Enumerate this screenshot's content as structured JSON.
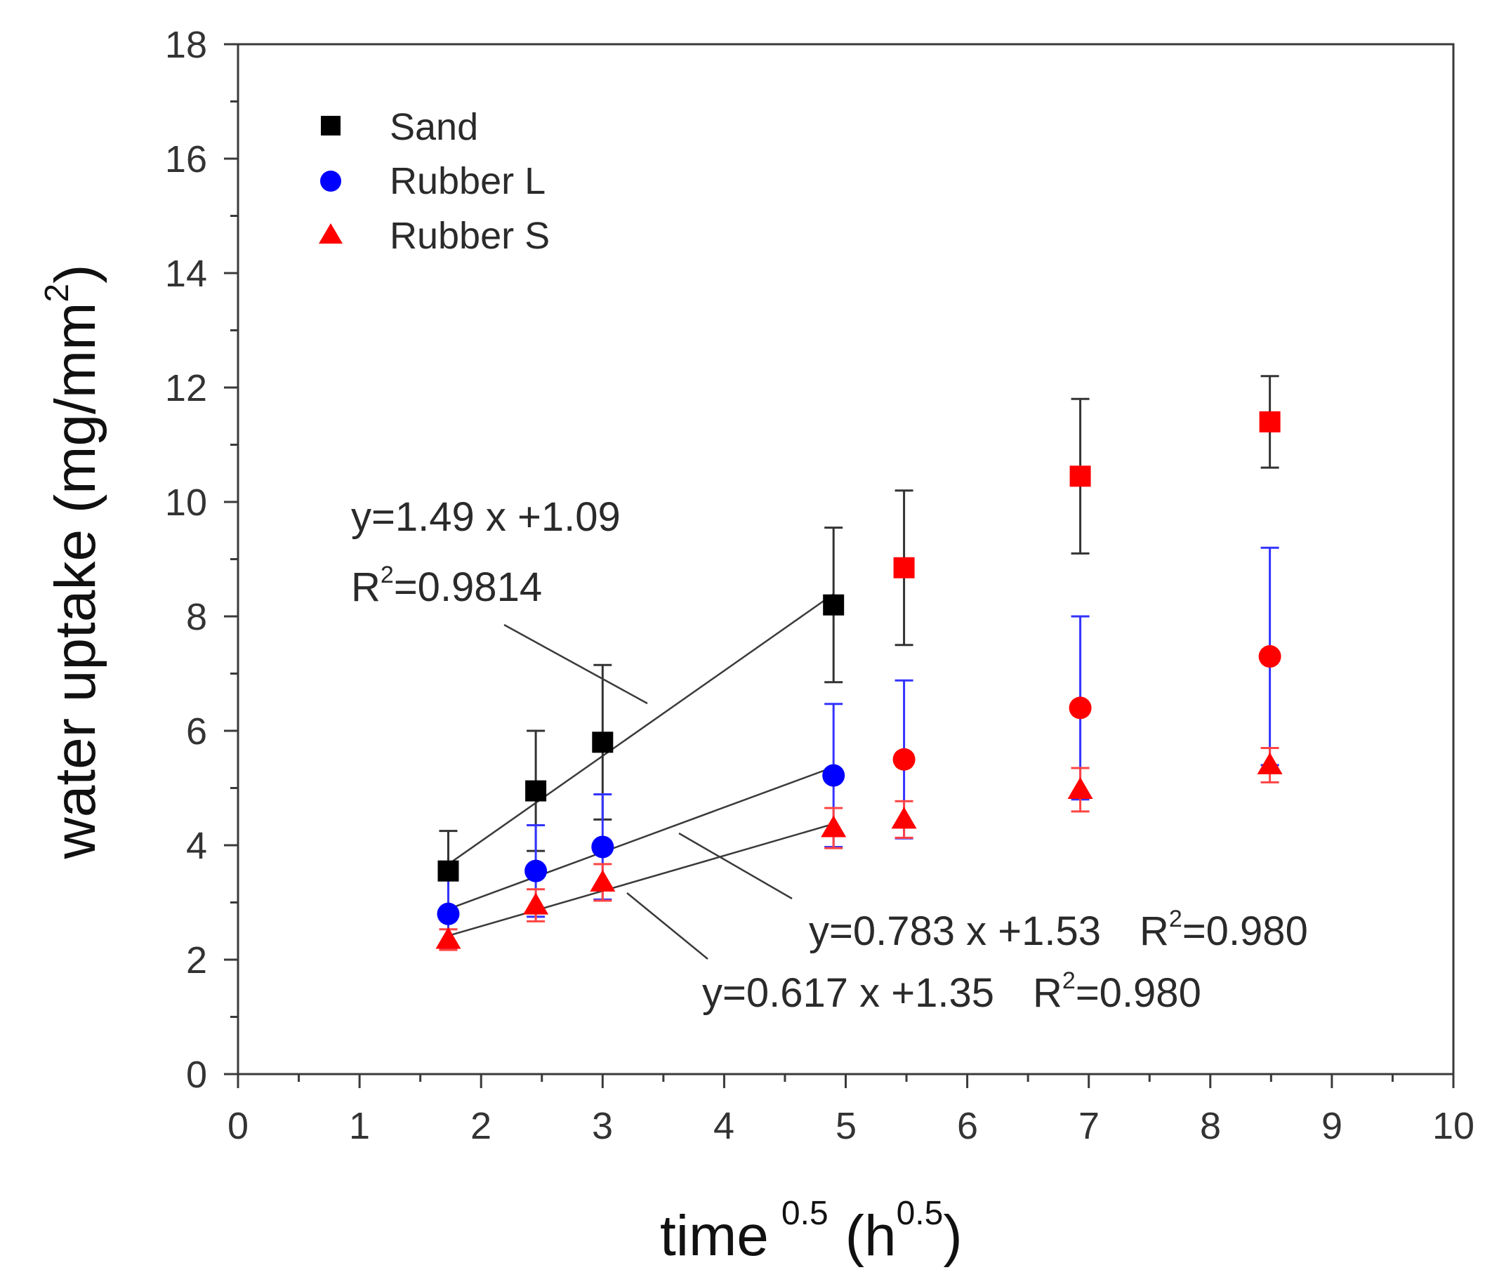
{
  "chart_data": {
    "type": "scatter",
    "title": "",
    "xlabel": "time",
    "xlabel_sup": "0.5",
    "xlabel_unit": "(h",
    "xlabel_unit_sup": "0.5",
    "xlabel_close": ")",
    "ylabel": "water uptake (mg/mm",
    "ylabel_sup": "2",
    "ylabel_close": ")",
    "xlim": [
      0,
      10
    ],
    "ylim": [
      0,
      18
    ],
    "xticks": [
      "0",
      "1",
      "2",
      "3",
      "4",
      "5",
      "6",
      "7",
      "8",
      "9",
      "10"
    ],
    "yticks": [
      "0",
      "2",
      "4",
      "6",
      "8",
      "10",
      "12",
      "14",
      "16",
      "18"
    ],
    "legend_position": "top-left",
    "fit_color": "#3a3a3a",
    "fit_range_color": "#ff0000",
    "series": [
      {
        "name": "Sand",
        "marker": "square",
        "color": "#000000",
        "errorbar_color": "#333333",
        "x": [
          1.73,
          2.45,
          3.0,
          4.9,
          5.48,
          6.93,
          8.49
        ],
        "y": [
          3.55,
          4.95,
          5.8,
          8.2,
          8.85,
          10.45,
          11.4
        ],
        "err": [
          0.7,
          1.05,
          1.35,
          1.35,
          1.35,
          1.35,
          0.8
        ],
        "fit_n": 4,
        "fit": {
          "slope": 1.49,
          "intercept": 1.09,
          "x_range": [
            1.73,
            4.9
          ]
        }
      },
      {
        "name": "Rubber L",
        "marker": "circle",
        "color": "#0000ff",
        "errorbar_color": "#3333ff",
        "x": [
          1.73,
          2.45,
          3.0,
          4.9,
          5.48,
          6.93,
          8.49
        ],
        "y": [
          2.8,
          3.55,
          3.97,
          5.22,
          5.5,
          6.4,
          7.3
        ],
        "err": [
          0.6,
          0.8,
          0.92,
          1.25,
          1.38,
          1.6,
          1.9
        ],
        "fit_n": 4,
        "fit": {
          "slope": 0.783,
          "intercept": 1.53,
          "x_range": [
            1.73,
            4.9
          ]
        }
      },
      {
        "name": "Rubber S",
        "marker": "triangle",
        "color": "#ff0000",
        "errorbar_color": "#ff4444",
        "x": [
          1.73,
          2.45,
          3.0,
          4.9,
          5.48,
          6.93,
          8.49
        ],
        "y": [
          2.35,
          2.95,
          3.35,
          4.3,
          4.45,
          4.97,
          5.4
        ],
        "err": [
          0.18,
          0.28,
          0.32,
          0.35,
          0.32,
          0.38,
          0.3
        ],
        "fit_n": 4,
        "fit": {
          "slope": 0.617,
          "intercept": 1.35,
          "x_range": [
            1.73,
            4.9
          ]
        }
      }
    ],
    "annotations": [
      {
        "id": "sand",
        "line1": "y=1.49 x +1.09",
        "line2_prefix": "R",
        "line2_sup": "2",
        "line2_value": "=0.9814"
      },
      {
        "id": "rubber-l",
        "eq": "y=0.783 x +1.53",
        "r_prefix": "R",
        "r_sup": "2",
        "r_value": "=0.980"
      },
      {
        "id": "rubber-s",
        "eq": "y=0.617 x +1.35",
        "r_prefix": "R",
        "r_sup": "2",
        "r_value": "=0.980"
      }
    ]
  }
}
